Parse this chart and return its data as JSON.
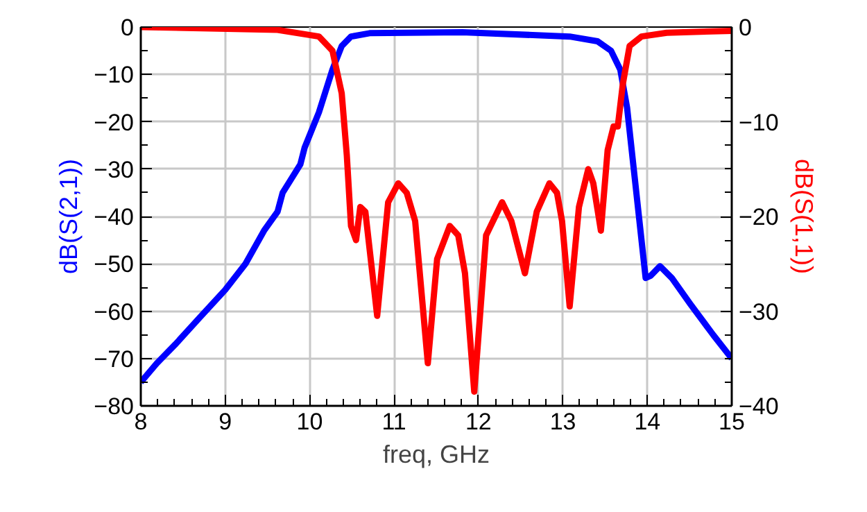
{
  "chart_data": {
    "type": "line",
    "xlabel": "freq, GHz",
    "ylabel": "dB(S(2,1))",
    "y2label": "dB(S(1,1))",
    "xlim": [
      8,
      15
    ],
    "xticks": [
      8,
      9,
      10,
      11,
      12,
      13,
      14,
      15
    ],
    "ylim": [
      -80,
      0
    ],
    "yticks": [
      -80,
      -70,
      -60,
      -50,
      -40,
      -30,
      -20,
      -10,
      0
    ],
    "y2lim": [
      -40,
      0
    ],
    "y2ticks": [
      -40,
      -30,
      -20,
      -10,
      0
    ],
    "grid": true,
    "marker": "none",
    "line_style": "solid",
    "series": [
      {
        "color": "#0000ff",
        "x": [
          8,
          8.19,
          8.41,
          8.69,
          9,
          9.24,
          9.46,
          9.62,
          9.68,
          9.89,
          9.94,
          10.11,
          10.27,
          10.38,
          10.49,
          10.71,
          11.81,
          13.08,
          13.41,
          13.57,
          13.68,
          13.76,
          13.87,
          13.98,
          14.04,
          14.15,
          14.29,
          14.51,
          14.78,
          15
        ],
        "values": [
          -75,
          -71,
          -67,
          -61.5,
          -55.5,
          -50,
          -43,
          -39,
          -35,
          -29,
          -25.5,
          -18,
          -9,
          -4,
          -2,
          -1.3,
          -1.1,
          -2,
          -3,
          -5,
          -9,
          -17,
          -35,
          -53,
          -52.5,
          -50.5,
          -53,
          -58.5,
          -65,
          -70
        ]
      },
      {
        "color": "#ff0000",
        "axis": "y2",
        "x": [
          8,
          9.62,
          10.11,
          10.27,
          10.38,
          10.44,
          10.49,
          10.55,
          10.6,
          10.66,
          10.8,
          10.93,
          11.05,
          11.15,
          11.25,
          11.4,
          11.51,
          11.66,
          11.76,
          11.84,
          11.95,
          12.09,
          12.28,
          12.39,
          12.55,
          12.69,
          12.84,
          12.93,
          12.99,
          13.08,
          13.19,
          13.3,
          13.36,
          13.45,
          13.53,
          13.6,
          13.65,
          13.71,
          13.79,
          13.93,
          14.23,
          15
        ],
        "values": [
          0,
          -0.3,
          -1,
          -2.5,
          -7,
          -13.5,
          -21,
          -22.5,
          -19,
          -19.5,
          -30.5,
          -18.5,
          -16.5,
          -17.5,
          -20.5,
          -35.5,
          -24.5,
          -21,
          -22,
          -26,
          -38.5,
          -22,
          -18.5,
          -20.5,
          -26,
          -19.5,
          -16.5,
          -17.5,
          -20.5,
          -29.5,
          -19,
          -15,
          -16.5,
          -21.5,
          -13,
          -10.5,
          -10.5,
          -6,
          -2,
          -1,
          -0.6,
          -0.4
        ]
      }
    ]
  }
}
